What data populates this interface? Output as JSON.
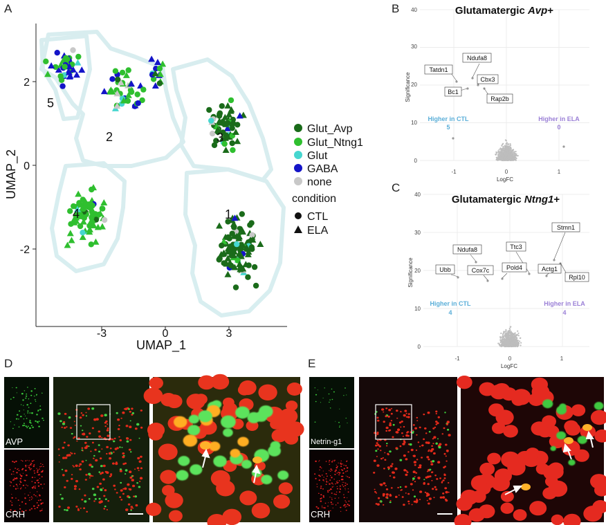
{
  "panels": {
    "A": "A",
    "B": "B",
    "C": "C",
    "D": "D",
    "E": "E"
  },
  "umap": {
    "xlabel": "UMAP_1",
    "ylabel": "UMAP_2",
    "xticks": [
      "-3",
      "0",
      "3"
    ],
    "yticks": [
      "2",
      "0",
      "-2"
    ],
    "clusters": [
      "1",
      "2",
      "3",
      "4",
      "5"
    ],
    "legend": {
      "celltypes": [
        {
          "label": "Glut_Avp",
          "color": "#1a6b1a"
        },
        {
          "label": "Glut_Ntng1",
          "color": "#2fbf2f"
        },
        {
          "label": "Glut",
          "color": "#46d6cf"
        },
        {
          "label": "GABA",
          "color": "#1414c8"
        },
        {
          "label": "none",
          "color": "#c8c8c8"
        }
      ],
      "condition_title": "condition",
      "conditions": [
        {
          "label": "CTL",
          "shape": "circle"
        },
        {
          "label": "ELA",
          "shape": "triangle"
        }
      ]
    }
  },
  "volcano_B": {
    "title_prefix": "Glutamatergic ",
    "title_gene": "Avp",
    "title_suffix": "+",
    "ylabel": "Significance",
    "xlabel": "LogFC",
    "yticks": [
      "40",
      "30",
      "20",
      "10",
      "0"
    ],
    "xticks": [
      "-1",
      "0",
      "1"
    ],
    "genes": [
      "Ndufa8",
      "Tatdn1",
      "Cbx3",
      "Bc1",
      "Rap2b"
    ],
    "ctl_label": "Higher in CTL",
    "ctl_count": "5",
    "ela_label": "Higher in ELA",
    "ela_count": "0"
  },
  "volcano_C": {
    "title_prefix": "Glutamatergic ",
    "title_gene": "Ntng1",
    "title_suffix": "+",
    "ylabel": "Significance",
    "xlabel": "LogFC",
    "yticks": [
      "40",
      "30",
      "20",
      "10",
      "0"
    ],
    "xticks": [
      "-1",
      "0",
      "1"
    ],
    "genes": [
      "Stmn1",
      "Ndufa8",
      "Ttc3",
      "Ubb",
      "Cox7c",
      "Pold4",
      "Actg1",
      "Rpl10"
    ],
    "ctl_label": "Higher in CTL",
    "ctl_count": "4",
    "ela_label": "Higher in ELA",
    "ela_count": "4"
  },
  "micro_D": {
    "label_top": "AVP",
    "label_bottom": "CRH"
  },
  "micro_E": {
    "label_top": "Netrin-g1",
    "label_bottom": "CRH"
  }
}
